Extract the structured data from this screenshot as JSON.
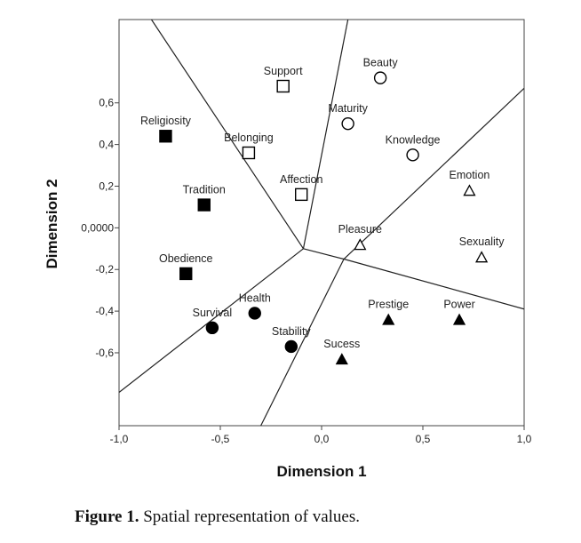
{
  "chart_data": {
    "type": "scatter",
    "xlabel": "Dimension 1",
    "ylabel": "Dimension 2",
    "xlim": [
      -1.0,
      1.0
    ],
    "ylim": [
      -0.95,
      1.0
    ],
    "x_ticks": [
      {
        "value": -1.0,
        "label": "-1,0"
      },
      {
        "value": -0.5,
        "label": "-0,5"
      },
      {
        "value": 0.0,
        "label": "0,0"
      },
      {
        "value": 0.5,
        "label": "0,5"
      },
      {
        "value": 1.0,
        "label": "1,0"
      }
    ],
    "y_ticks": [
      {
        "value": 0.6,
        "label": "0,6"
      },
      {
        "value": 0.4,
        "label": "0,4"
      },
      {
        "value": 0.2,
        "label": "0,2"
      },
      {
        "value": 0.0,
        "label": "0,0000"
      },
      {
        "value": -0.2,
        "label": "-0,2"
      },
      {
        "value": -0.4,
        "label": "-0,4"
      },
      {
        "value": -0.6,
        "label": "-0,6"
      }
    ],
    "points": [
      {
        "label": "Religiosity",
        "x": -0.77,
        "y": 0.44,
        "marker": "filled-square"
      },
      {
        "label": "Tradition",
        "x": -0.58,
        "y": 0.11,
        "marker": "filled-square"
      },
      {
        "label": "Obedience",
        "x": -0.67,
        "y": -0.22,
        "marker": "filled-square"
      },
      {
        "label": "Support",
        "x": -0.19,
        "y": 0.68,
        "marker": "open-square"
      },
      {
        "label": "Belonging",
        "x": -0.36,
        "y": 0.36,
        "marker": "open-square"
      },
      {
        "label": "Affection",
        "x": -0.1,
        "y": 0.16,
        "marker": "open-square"
      },
      {
        "label": "Beauty",
        "x": 0.29,
        "y": 0.72,
        "marker": "open-circle"
      },
      {
        "label": "Maturity",
        "x": 0.13,
        "y": 0.5,
        "marker": "open-circle"
      },
      {
        "label": "Knowledge",
        "x": 0.45,
        "y": 0.35,
        "marker": "open-circle"
      },
      {
        "label": "Emotion",
        "x": 0.73,
        "y": 0.18,
        "marker": "open-triangle"
      },
      {
        "label": "Pleasure",
        "x": 0.19,
        "y": -0.08,
        "marker": "open-triangle"
      },
      {
        "label": "Sexuality",
        "x": 0.79,
        "y": -0.14,
        "marker": "open-triangle"
      },
      {
        "label": "Health",
        "x": -0.33,
        "y": -0.41,
        "marker": "filled-circle"
      },
      {
        "label": "Survival",
        "x": -0.54,
        "y": -0.48,
        "marker": "filled-circle"
      },
      {
        "label": "Stability",
        "x": -0.15,
        "y": -0.57,
        "marker": "filled-circle"
      },
      {
        "label": "Prestige",
        "x": 0.33,
        "y": -0.44,
        "marker": "filled-triangle"
      },
      {
        "label": "Power",
        "x": 0.68,
        "y": -0.44,
        "marker": "filled-triangle"
      },
      {
        "label": "Sucess",
        "x": 0.1,
        "y": -0.63,
        "marker": "filled-triangle"
      }
    ],
    "partition_lines": [
      {
        "from": [
          -0.09,
          -0.1
        ],
        "to": [
          -0.84,
          1.0
        ]
      },
      {
        "from": [
          -0.09,
          -0.1
        ],
        "to": [
          0.13,
          1.0
        ]
      },
      {
        "from": [
          -0.09,
          -0.1
        ],
        "to": [
          -1.0,
          -0.79
        ]
      },
      {
        "from": [
          -0.09,
          -0.1
        ],
        "to": [
          0.11,
          -0.15
        ]
      },
      {
        "from": [
          0.11,
          -0.15
        ],
        "to": [
          1.0,
          0.67
        ]
      },
      {
        "from": [
          0.11,
          -0.15
        ],
        "to": [
          1.0,
          -0.39
        ]
      },
      {
        "from": [
          0.11,
          -0.15
        ],
        "to": [
          -0.3,
          -0.95
        ]
      }
    ],
    "grid": false,
    "legend": "none"
  },
  "caption": {
    "label": "Figure 1.",
    "text": " Spatial representation of values."
  }
}
